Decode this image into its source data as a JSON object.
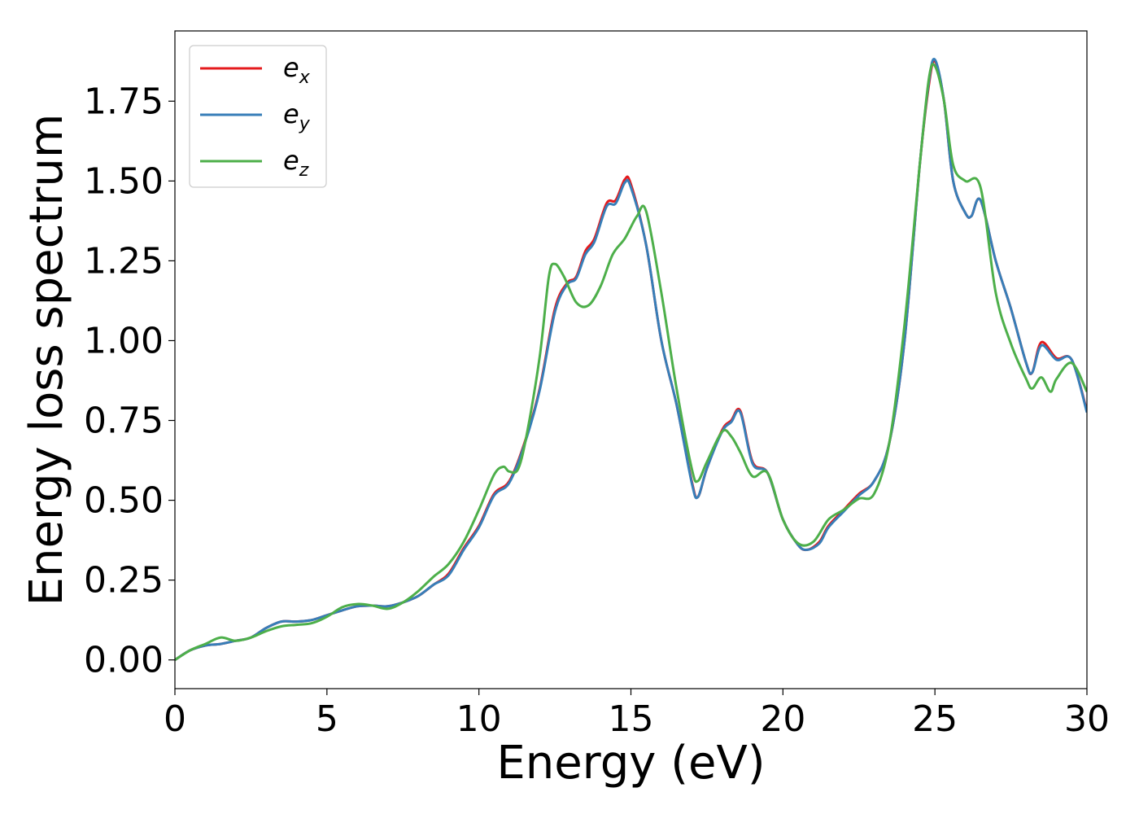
{
  "chart_data": {
    "type": "line",
    "xlabel": "Energy (eV)",
    "ylabel": "Energy loss spectrum",
    "xlim": [
      0,
      30
    ],
    "ylim": [
      -0.09,
      1.97
    ],
    "xticks": [
      0,
      5,
      10,
      15,
      20,
      25,
      30
    ],
    "xtick_labels": [
      "0",
      "5",
      "10",
      "15",
      "20",
      "25",
      "30"
    ],
    "yticks": [
      0,
      0.25,
      0.5,
      0.75,
      1.0,
      1.25,
      1.5,
      1.75
    ],
    "ytick_labels": [
      "0.00",
      "0.25",
      "0.50",
      "0.75",
      "1.00",
      "1.25",
      "1.50",
      "1.75"
    ],
    "grid": false,
    "legend_position": "top-left",
    "series": [
      {
        "name": "e_x",
        "label_base": "e",
        "label_sub": "x",
        "color": "#e41a1c",
        "points": [
          [
            0,
            0
          ],
          [
            0.5,
            0.03
          ],
          [
            1,
            0.045
          ],
          [
            1.5,
            0.05
          ],
          [
            2,
            0.06
          ],
          [
            2.5,
            0.07
          ],
          [
            3,
            0.1
          ],
          [
            3.5,
            0.12
          ],
          [
            4,
            0.12
          ],
          [
            4.5,
            0.125
          ],
          [
            5,
            0.14
          ],
          [
            5.5,
            0.155
          ],
          [
            6,
            0.168
          ],
          [
            6.5,
            0.17
          ],
          [
            7,
            0.168
          ],
          [
            7.5,
            0.18
          ],
          [
            8,
            0.2
          ],
          [
            8.5,
            0.235
          ],
          [
            9,
            0.27
          ],
          [
            9.5,
            0.35
          ],
          [
            10,
            0.42
          ],
          [
            10.5,
            0.52
          ],
          [
            11,
            0.56
          ],
          [
            11.5,
            0.68
          ],
          [
            12,
            0.85
          ],
          [
            12.5,
            1.1
          ],
          [
            12.9,
            1.18
          ],
          [
            13.2,
            1.2
          ],
          [
            13.5,
            1.28
          ],
          [
            13.8,
            1.32
          ],
          [
            14.2,
            1.43
          ],
          [
            14.5,
            1.44
          ],
          [
            14.8,
            1.505
          ],
          [
            15,
            1.49
          ],
          [
            15.5,
            1.3
          ],
          [
            16,
            1.0
          ],
          [
            16.5,
            0.8
          ],
          [
            17,
            0.56
          ],
          [
            17.2,
            0.51
          ],
          [
            17.5,
            0.6
          ],
          [
            18,
            0.72
          ],
          [
            18.3,
            0.75
          ],
          [
            18.6,
            0.78
          ],
          [
            19,
            0.62
          ],
          [
            19.5,
            0.585
          ],
          [
            20,
            0.44
          ],
          [
            20.5,
            0.36
          ],
          [
            20.8,
            0.345
          ],
          [
            21.2,
            0.37
          ],
          [
            21.5,
            0.42
          ],
          [
            22,
            0.47
          ],
          [
            22.5,
            0.52
          ],
          [
            23,
            0.56
          ],
          [
            23.5,
            0.68
          ],
          [
            24,
            1.0
          ],
          [
            24.5,
            1.55
          ],
          [
            24.8,
            1.8
          ],
          [
            25,
            1.875
          ],
          [
            25.3,
            1.75
          ],
          [
            25.6,
            1.5
          ],
          [
            26,
            1.4
          ],
          [
            26.2,
            1.39
          ],
          [
            26.5,
            1.44
          ],
          [
            27,
            1.25
          ],
          [
            27.5,
            1.1
          ],
          [
            28,
            0.93
          ],
          [
            28.2,
            0.9
          ],
          [
            28.5,
            0.995
          ],
          [
            29,
            0.945
          ],
          [
            29.5,
            0.94
          ],
          [
            30,
            0.78
          ]
        ]
      },
      {
        "name": "e_y",
        "label_base": "e",
        "label_sub": "y",
        "color": "#377eb8",
        "points": [
          [
            0,
            0
          ],
          [
            0.5,
            0.03
          ],
          [
            1,
            0.045
          ],
          [
            1.5,
            0.05
          ],
          [
            2,
            0.06
          ],
          [
            2.5,
            0.07
          ],
          [
            3,
            0.1
          ],
          [
            3.5,
            0.12
          ],
          [
            4,
            0.12
          ],
          [
            4.5,
            0.125
          ],
          [
            5,
            0.14
          ],
          [
            5.5,
            0.155
          ],
          [
            6,
            0.168
          ],
          [
            6.5,
            0.17
          ],
          [
            7,
            0.168
          ],
          [
            7.5,
            0.18
          ],
          [
            8,
            0.2
          ],
          [
            8.5,
            0.235
          ],
          [
            9,
            0.265
          ],
          [
            9.5,
            0.345
          ],
          [
            10,
            0.415
          ],
          [
            10.5,
            0.515
          ],
          [
            11,
            0.555
          ],
          [
            11.5,
            0.675
          ],
          [
            12,
            0.845
          ],
          [
            12.5,
            1.09
          ],
          [
            12.9,
            1.175
          ],
          [
            13.2,
            1.195
          ],
          [
            13.5,
            1.27
          ],
          [
            13.8,
            1.31
          ],
          [
            14.2,
            1.42
          ],
          [
            14.5,
            1.43
          ],
          [
            14.8,
            1.495
          ],
          [
            15,
            1.48
          ],
          [
            15.5,
            1.3
          ],
          [
            16,
            1.0
          ],
          [
            16.5,
            0.8
          ],
          [
            17,
            0.555
          ],
          [
            17.2,
            0.51
          ],
          [
            17.5,
            0.6
          ],
          [
            18,
            0.715
          ],
          [
            18.3,
            0.745
          ],
          [
            18.6,
            0.775
          ],
          [
            19,
            0.615
          ],
          [
            19.5,
            0.585
          ],
          [
            20,
            0.44
          ],
          [
            20.5,
            0.36
          ],
          [
            20.8,
            0.345
          ],
          [
            21.2,
            0.365
          ],
          [
            21.5,
            0.415
          ],
          [
            22,
            0.465
          ],
          [
            22.5,
            0.515
          ],
          [
            23,
            0.56
          ],
          [
            23.5,
            0.68
          ],
          [
            24,
            1.0
          ],
          [
            24.5,
            1.55
          ],
          [
            24.8,
            1.81
          ],
          [
            25,
            1.88
          ],
          [
            25.3,
            1.75
          ],
          [
            25.6,
            1.5
          ],
          [
            26,
            1.4
          ],
          [
            26.2,
            1.39
          ],
          [
            26.5,
            1.44
          ],
          [
            27,
            1.25
          ],
          [
            27.5,
            1.1
          ],
          [
            28,
            0.93
          ],
          [
            28.2,
            0.9
          ],
          [
            28.5,
            0.985
          ],
          [
            29,
            0.94
          ],
          [
            29.5,
            0.94
          ],
          [
            30,
            0.775
          ]
        ]
      },
      {
        "name": "e_z",
        "label_base": "e",
        "label_sub": "z",
        "color": "#4daf4a",
        "points": [
          [
            0,
            0
          ],
          [
            0.5,
            0.03
          ],
          [
            1,
            0.05
          ],
          [
            1.5,
            0.07
          ],
          [
            2,
            0.06
          ],
          [
            2.5,
            0.07
          ],
          [
            3,
            0.09
          ],
          [
            3.5,
            0.105
          ],
          [
            4,
            0.11
          ],
          [
            4.5,
            0.115
          ],
          [
            5,
            0.135
          ],
          [
            5.5,
            0.165
          ],
          [
            6,
            0.175
          ],
          [
            6.5,
            0.17
          ],
          [
            7,
            0.16
          ],
          [
            7.5,
            0.18
          ],
          [
            8,
            0.215
          ],
          [
            8.5,
            0.26
          ],
          [
            9,
            0.3
          ],
          [
            9.5,
            0.37
          ],
          [
            10,
            0.47
          ],
          [
            10.5,
            0.58
          ],
          [
            10.8,
            0.605
          ],
          [
            11,
            0.59
          ],
          [
            11.3,
            0.6
          ],
          [
            11.6,
            0.72
          ],
          [
            12,
            0.95
          ],
          [
            12.3,
            1.2
          ],
          [
            12.5,
            1.24
          ],
          [
            12.8,
            1.2
          ],
          [
            13.2,
            1.12
          ],
          [
            13.6,
            1.11
          ],
          [
            14,
            1.17
          ],
          [
            14.4,
            1.27
          ],
          [
            14.8,
            1.32
          ],
          [
            15.2,
            1.39
          ],
          [
            15.5,
            1.405
          ],
          [
            16,
            1.15
          ],
          [
            16.5,
            0.85
          ],
          [
            17,
            0.6
          ],
          [
            17.2,
            0.56
          ],
          [
            17.5,
            0.62
          ],
          [
            18,
            0.715
          ],
          [
            18.3,
            0.7
          ],
          [
            18.6,
            0.65
          ],
          [
            19,
            0.575
          ],
          [
            19.5,
            0.585
          ],
          [
            20,
            0.44
          ],
          [
            20.5,
            0.365
          ],
          [
            21,
            0.37
          ],
          [
            21.5,
            0.44
          ],
          [
            22,
            0.47
          ],
          [
            22.5,
            0.505
          ],
          [
            23,
            0.52
          ],
          [
            23.5,
            0.68
          ],
          [
            24,
            1.05
          ],
          [
            24.5,
            1.55
          ],
          [
            24.8,
            1.82
          ],
          [
            25,
            1.86
          ],
          [
            25.3,
            1.75
          ],
          [
            25.6,
            1.55
          ],
          [
            26,
            1.5
          ],
          [
            26.5,
            1.48
          ],
          [
            27,
            1.15
          ],
          [
            27.5,
            0.99
          ],
          [
            28,
            0.88
          ],
          [
            28.2,
            0.85
          ],
          [
            28.5,
            0.885
          ],
          [
            28.8,
            0.84
          ],
          [
            29,
            0.88
          ],
          [
            29.5,
            0.93
          ],
          [
            30,
            0.84
          ]
        ]
      }
    ]
  }
}
